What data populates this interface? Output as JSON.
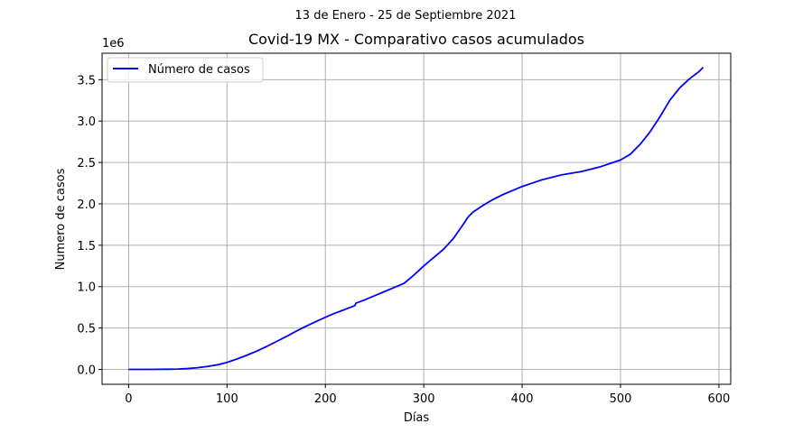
{
  "chart_data": {
    "type": "line",
    "suptitle": "13 de Enero - 25 de Septiembre 2021",
    "title": "Covid-19 MX - Comparativo casos acumulados",
    "xlabel": "Días",
    "ylabel": "Numero de casos",
    "y_offset_label": "1e6",
    "xlim": [
      -27,
      612
    ],
    "ylim": [
      -0.18,
      3.82
    ],
    "x_ticks": [
      0,
      100,
      200,
      300,
      400,
      500,
      600
    ],
    "y_ticks": [
      0.0,
      0.5,
      1.0,
      1.5,
      2.0,
      2.5,
      3.0,
      3.5
    ],
    "x_tick_labels": [
      "0",
      "100",
      "200",
      "300",
      "400",
      "500",
      "600"
    ],
    "y_tick_labels": [
      "0.0",
      "0.5",
      "1.0",
      "1.5",
      "2.0",
      "2.5",
      "3.0",
      "3.5"
    ],
    "grid": true,
    "legend_position": "top-left",
    "series": [
      {
        "name": "Número de casos",
        "color": "#0000ff",
        "x": [
          0,
          20,
          40,
          50,
          60,
          70,
          80,
          90,
          100,
          110,
          120,
          130,
          140,
          150,
          160,
          170,
          180,
          190,
          200,
          210,
          220,
          230,
          231,
          240,
          250,
          260,
          270,
          280,
          290,
          300,
          310,
          320,
          330,
          340,
          345,
          350,
          360,
          370,
          380,
          390,
          400,
          410,
          420,
          430,
          440,
          450,
          460,
          470,
          480,
          490,
          500,
          510,
          520,
          530,
          540,
          550,
          560,
          570,
          580,
          584
        ],
        "y": [
          0,
          0,
          0.002,
          0.004,
          0.01,
          0.02,
          0.035,
          0.055,
          0.085,
          0.125,
          0.17,
          0.22,
          0.275,
          0.335,
          0.395,
          0.46,
          0.52,
          0.575,
          0.63,
          0.68,
          0.725,
          0.77,
          0.8,
          0.84,
          0.89,
          0.94,
          0.99,
          1.04,
          1.14,
          1.25,
          1.35,
          1.45,
          1.58,
          1.75,
          1.84,
          1.9,
          1.98,
          2.05,
          2.11,
          2.16,
          2.21,
          2.25,
          2.29,
          2.32,
          2.35,
          2.37,
          2.39,
          2.42,
          2.45,
          2.49,
          2.53,
          2.6,
          2.72,
          2.87,
          3.05,
          3.25,
          3.4,
          3.51,
          3.6,
          3.65
        ]
      }
    ]
  }
}
